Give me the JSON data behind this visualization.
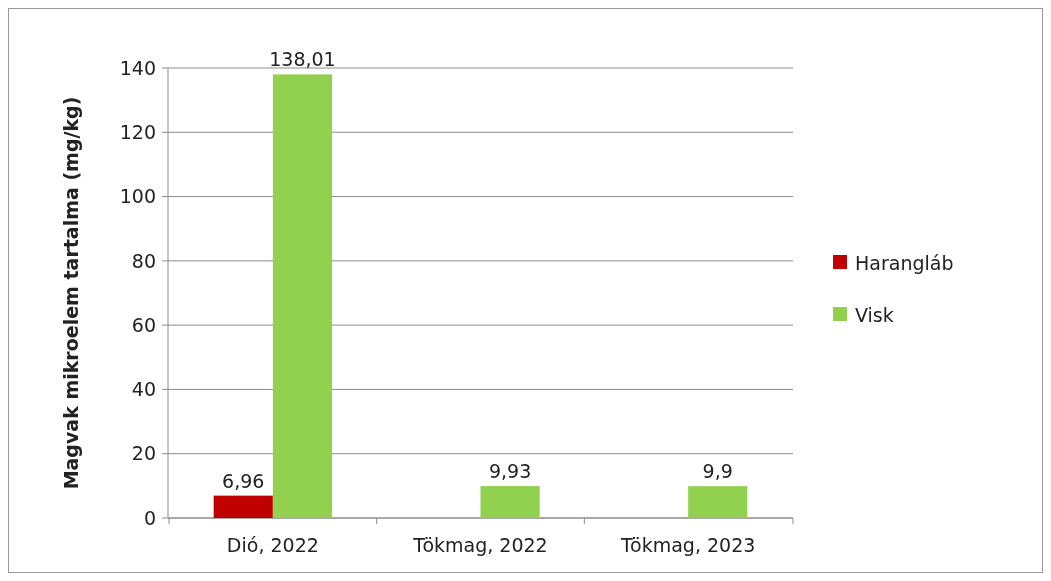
{
  "chart_data": {
    "type": "bar",
    "ylabel": "Magvak mikroelem tartalma (mg/kg)",
    "categories": [
      "Dió, 2022",
      "Tökmag, 2022",
      "Tökmag, 2023"
    ],
    "series": [
      {
        "name": "Harangláb",
        "color": "#c00000",
        "values": [
          6.96,
          null,
          null
        ],
        "value_labels": [
          "6,96",
          null,
          null
        ]
      },
      {
        "name": "Visk",
        "color": "#92d050",
        "values": [
          138.01,
          9.93,
          9.9
        ],
        "value_labels": [
          "138,01",
          "9,93",
          "9,9"
        ]
      }
    ],
    "ylim": [
      0,
      140
    ],
    "yticks": [
      0,
      20,
      40,
      60,
      80,
      100,
      120,
      140
    ],
    "grid": "y",
    "legend": "right"
  }
}
